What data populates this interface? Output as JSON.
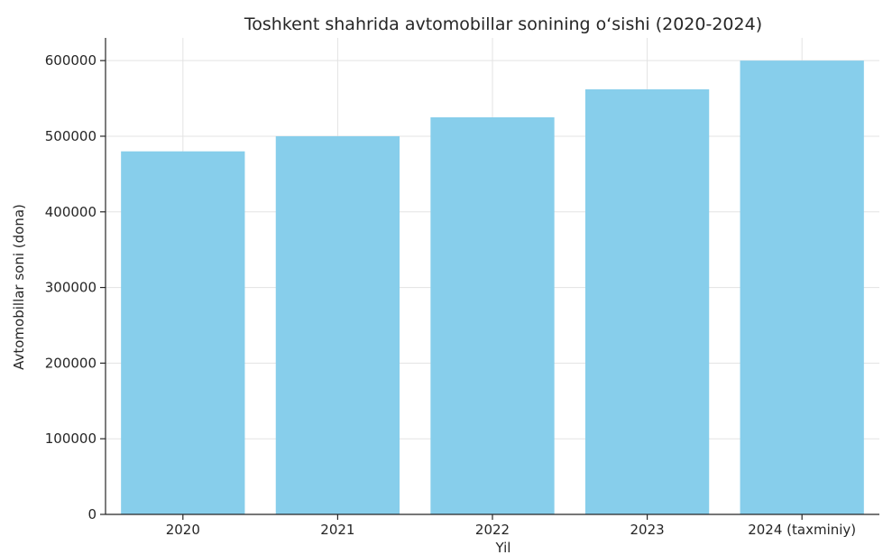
{
  "chart_data": {
    "type": "bar",
    "title": "Toshkent shahrida avtomobillar sonining o‘sishi (2020-2024)",
    "xlabel": "Yil",
    "ylabel": "Avtomobillar soni (dona)",
    "categories": [
      "2020",
      "2021",
      "2022",
      "2023",
      "2024 (taxminiy)"
    ],
    "values": [
      480000,
      500000,
      525000,
      562000,
      600000
    ],
    "ylim": [
      0,
      630000
    ],
    "yticks": [
      0,
      100000,
      200000,
      300000,
      400000,
      500000,
      600000
    ],
    "ytick_labels": [
      "0",
      "100000",
      "200000",
      "300000",
      "400000",
      "500000",
      "600000"
    ],
    "grid": true,
    "bar_color": "#87ceeb"
  }
}
